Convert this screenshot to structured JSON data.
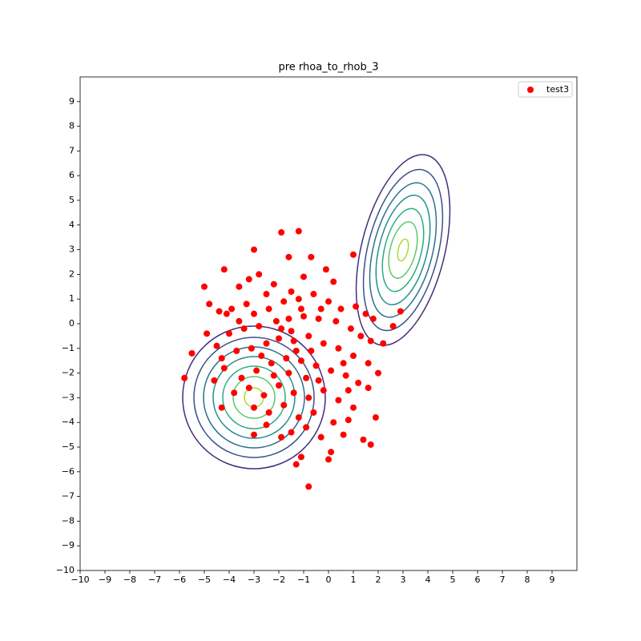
{
  "chart_data": {
    "type": "scatter",
    "title": "pre rhoa_to_rhob_3",
    "xlim": [
      -10,
      10
    ],
    "ylim": [
      -10,
      10
    ],
    "xticks": [
      {
        "value": -10,
        "label": "−10"
      },
      {
        "value": -9,
        "label": "−9"
      },
      {
        "value": -8,
        "label": "−8"
      },
      {
        "value": -7,
        "label": "−7"
      },
      {
        "value": -6,
        "label": "−6"
      },
      {
        "value": -5,
        "label": "−5"
      },
      {
        "value": -4,
        "label": "−4"
      },
      {
        "value": -3,
        "label": "−3"
      },
      {
        "value": -2,
        "label": "−2"
      },
      {
        "value": -1,
        "label": "−1"
      },
      0,
      1,
      2,
      3,
      4,
      5,
      6,
      7,
      8,
      9
    ],
    "yticks": [
      {
        "value": -10,
        "label": "−10"
      },
      {
        "value": -9,
        "label": "−9"
      },
      {
        "value": -8,
        "label": "−8"
      },
      {
        "value": -7,
        "label": "−7"
      },
      {
        "value": -6,
        "label": "−6"
      },
      {
        "value": -5,
        "label": "−5"
      },
      {
        "value": -4,
        "label": "−4"
      },
      {
        "value": -3,
        "label": "−3"
      },
      {
        "value": -2,
        "label": "−2"
      },
      {
        "value": -1,
        "label": "−1"
      },
      0,
      1,
      2,
      3,
      4,
      5,
      6,
      7,
      8,
      9
    ],
    "legend": "upper right",
    "x": [
      -3,
      -1.9,
      -1.2,
      1,
      -4.2,
      -5,
      -4.8,
      -3.6,
      -3.2,
      -2.8,
      -1.6,
      -0.7,
      -0.1,
      0.2,
      -1,
      -2.2,
      -1.5,
      -2.5,
      -3.3,
      -3.9,
      -4.1,
      -4.4,
      -3.6,
      -3,
      -2.4,
      -1.8,
      -1.2,
      -0.6,
      0,
      0.5,
      1.1,
      1.5,
      1.8,
      2.6,
      2.9,
      -5.5,
      -4.9,
      -4.5,
      -4,
      -3.4,
      -2.8,
      -2.1,
      -1.6,
      -1,
      -0.4,
      0.3,
      0.9,
      1.3,
      1.7,
      2.2,
      -4.3,
      -3.7,
      -3.1,
      -2.5,
      -2,
      -1.4,
      -0.8,
      -0.2,
      0.4,
      1,
      1.6,
      2,
      -5.8,
      -4.6,
      -4.2,
      -3.5,
      -2.9,
      -2.3,
      -1.7,
      -1.1,
      -0.5,
      0.1,
      0.7,
      1.2,
      1.6,
      -3.8,
      -3.2,
      -2.6,
      -2,
      -1.4,
      -0.8,
      -0.2,
      0.4,
      1,
      -4.3,
      -3,
      -2.4,
      -1.8,
      -1.2,
      -0.6,
      0.2,
      0.8,
      1.9,
      1.4,
      -3,
      -2.5,
      -1.9,
      -1.5,
      -0.9,
      -0.3,
      0.6,
      1.7,
      -1.3,
      -1.1,
      0.1,
      0,
      -0.8,
      -1.5,
      -1.3,
      -0.9,
      -1.6,
      -1.1,
      -0.7,
      -2.2,
      -0.4,
      0.6,
      -1.9,
      -0.3,
      0.8,
      -2.7
    ],
    "series": [
      {
        "name": "test3",
        "color": "#ff0000",
        "values": [
          3,
          3.7,
          3.75,
          2.8,
          2.2,
          1.5,
          0.8,
          1.5,
          1.8,
          2,
          2.7,
          2.7,
          2.2,
          1.7,
          1.9,
          1.6,
          1.3,
          1.2,
          0.8,
          0.6,
          0.4,
          0.5,
          0.1,
          0.4,
          0.6,
          0.9,
          1,
          1.2,
          0.9,
          0.6,
          0.7,
          0.4,
          0.2,
          -0.1,
          0.5,
          -1.2,
          -0.4,
          -0.9,
          -0.4,
          -0.2,
          -0.1,
          0.1,
          0.2,
          0.3,
          0.2,
          0.1,
          -0.2,
          -0.5,
          -0.7,
          -0.8,
          -1.4,
          -1.1,
          -1,
          -0.8,
          -0.6,
          -0.7,
          -0.5,
          -0.8,
          -1,
          -1.3,
          -1.6,
          -2,
          -2.2,
          -2.3,
          -1.8,
          -2.2,
          -1.9,
          -1.6,
          -1.4,
          -1.5,
          -1.7,
          -1.9,
          -2.1,
          -2.4,
          -2.6,
          -2.8,
          -2.6,
          -2.9,
          -2.5,
          -2.8,
          -3,
          -2.7,
          -3.1,
          -3.4,
          -3.4,
          -3.4,
          -3.6,
          -3.3,
          -3.8,
          -3.6,
          -4,
          -3.9,
          -3.8,
          -4.7,
          -4.5,
          -4.1,
          -4.6,
          -4.4,
          -4.2,
          -4.6,
          -4.5,
          -4.9,
          -5.7,
          -5.4,
          -5.2,
          -5.5,
          -6.6,
          -0.3,
          -1.1,
          -2.2,
          -2,
          0.6,
          -1.1,
          -2.1,
          -2.3,
          -1.6,
          -0.2,
          0.6,
          -2.7,
          -1.3
        ]
      }
    ]
  }
}
